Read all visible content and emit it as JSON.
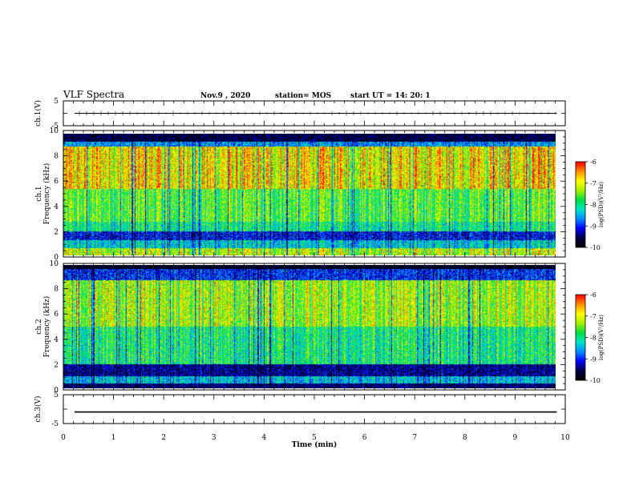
{
  "header": {
    "title": "VLF Spectra",
    "date": "Nov.9 , 2020",
    "station": "station= MOS",
    "start": "start UT = 14: 20: 1"
  },
  "chart_data": [
    {
      "type": "line",
      "panel": "ch1-waveform",
      "ylabel": "ch.1(V)",
      "ylim": [
        -5,
        5
      ],
      "y_ticks": [
        "5",
        "-5"
      ],
      "series": [
        {
          "values": [
            0
          ]
        }
      ]
    },
    {
      "type": "heatmap",
      "panel": "ch1-spectrogram",
      "ylabel": "ch.1 Frequency (kHz)",
      "ylim": [
        0,
        10
      ],
      "y_ticks": [
        "0",
        "2",
        "4",
        "6",
        "8",
        "10"
      ],
      "colorbar": {
        "label": "log(PSD)(V²/Hz)",
        "min": -10,
        "max": -6,
        "ticks": [
          "-6",
          "-7",
          "-8",
          "-9",
          "-10"
        ]
      }
    },
    {
      "type": "heatmap",
      "panel": "ch2-spectrogram",
      "ylabel": "ch.2 Frequency (kHz)",
      "ylim": [
        0,
        10
      ],
      "y_ticks": [
        "0",
        "2",
        "4",
        "6",
        "8",
        "10"
      ],
      "colorbar": {
        "label": "log(PSD)(V²/Hz)",
        "min": -10,
        "max": -6,
        "ticks": [
          "-6",
          "-7",
          "-8",
          "-9",
          "-10"
        ]
      }
    },
    {
      "type": "line",
      "panel": "ch3-waveform",
      "ylabel": "ch.3(V)",
      "ylim": [
        -5,
        5
      ],
      "y_ticks": [
        "5",
        "-5"
      ],
      "series": [
        {
          "values": [
            -1
          ]
        }
      ]
    }
  ],
  "x_axis": {
    "label": "Time (min)",
    "range": [
      0,
      10
    ],
    "ticks": [
      "0",
      "1",
      "2",
      "3",
      "4",
      "5",
      "6",
      "7",
      "8",
      "9",
      "10"
    ],
    "data_end": 9.83
  },
  "colors": {
    "scale": [
      "#000000",
      "#00004a",
      "#0000ff",
      "#0090ff",
      "#00e6c8",
      "#00e040",
      "#a8f000",
      "#ffff00",
      "#ff9000",
      "#ff0000"
    ]
  }
}
